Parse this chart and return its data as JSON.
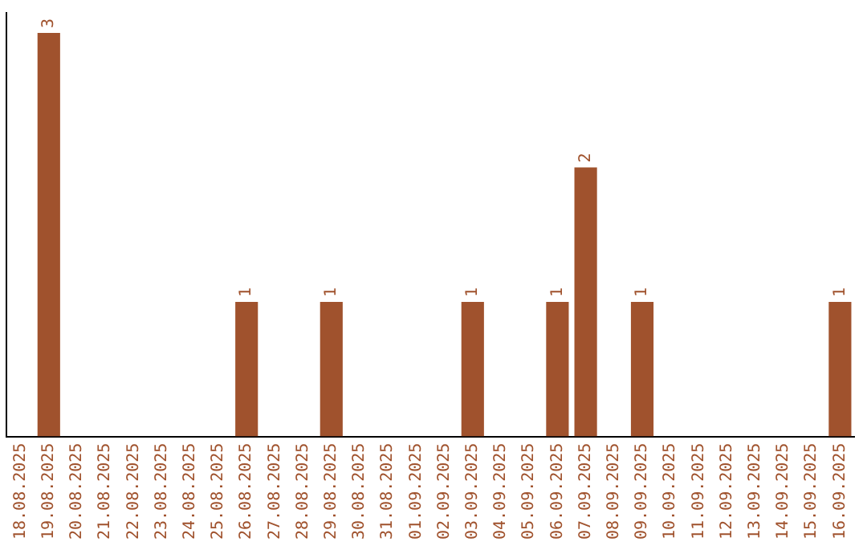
{
  "chart_data": {
    "type": "bar",
    "relative": false,
    "categories": [
      "18.08.2025",
      "19.08.2025",
      "20.08.2025",
      "21.08.2025",
      "22.08.2025",
      "23.08.2025",
      "24.08.2025",
      "25.08.2025",
      "26.08.2025",
      "27.08.2025",
      "28.08.2025",
      "29.08.2025",
      "30.08.2025",
      "31.08.2025",
      "01.09.2025",
      "02.09.2025",
      "03.09.2025",
      "04.09.2025",
      "05.09.2025",
      "06.09.2025",
      "07.09.2025",
      "08.09.2025",
      "09.09.2025",
      "10.09.2025",
      "11.09.2025",
      "12.09.2025",
      "13.09.2025",
      "14.09.2025",
      "15.09.2025",
      "16.09.2025"
    ],
    "values": [
      0,
      3,
      0,
      0,
      0,
      0,
      0,
      0,
      1,
      0,
      0,
      1,
      0,
      0,
      0,
      0,
      1,
      0,
      0,
      1,
      2,
      0,
      1,
      0,
      0,
      0,
      0,
      0,
      0,
      1
    ],
    "value_labels": [
      null,
      "3",
      null,
      null,
      null,
      null,
      null,
      null,
      "1",
      null,
      null,
      "1",
      null,
      null,
      null,
      null,
      "1",
      null,
      null,
      "1",
      "2",
      null,
      "1",
      null,
      null,
      null,
      null,
      null,
      null,
      "1"
    ],
    "color": "#a0522d",
    "ylim": [
      0,
      3.15
    ],
    "tick_labels": "x",
    "grid": false,
    "legend": false
  }
}
